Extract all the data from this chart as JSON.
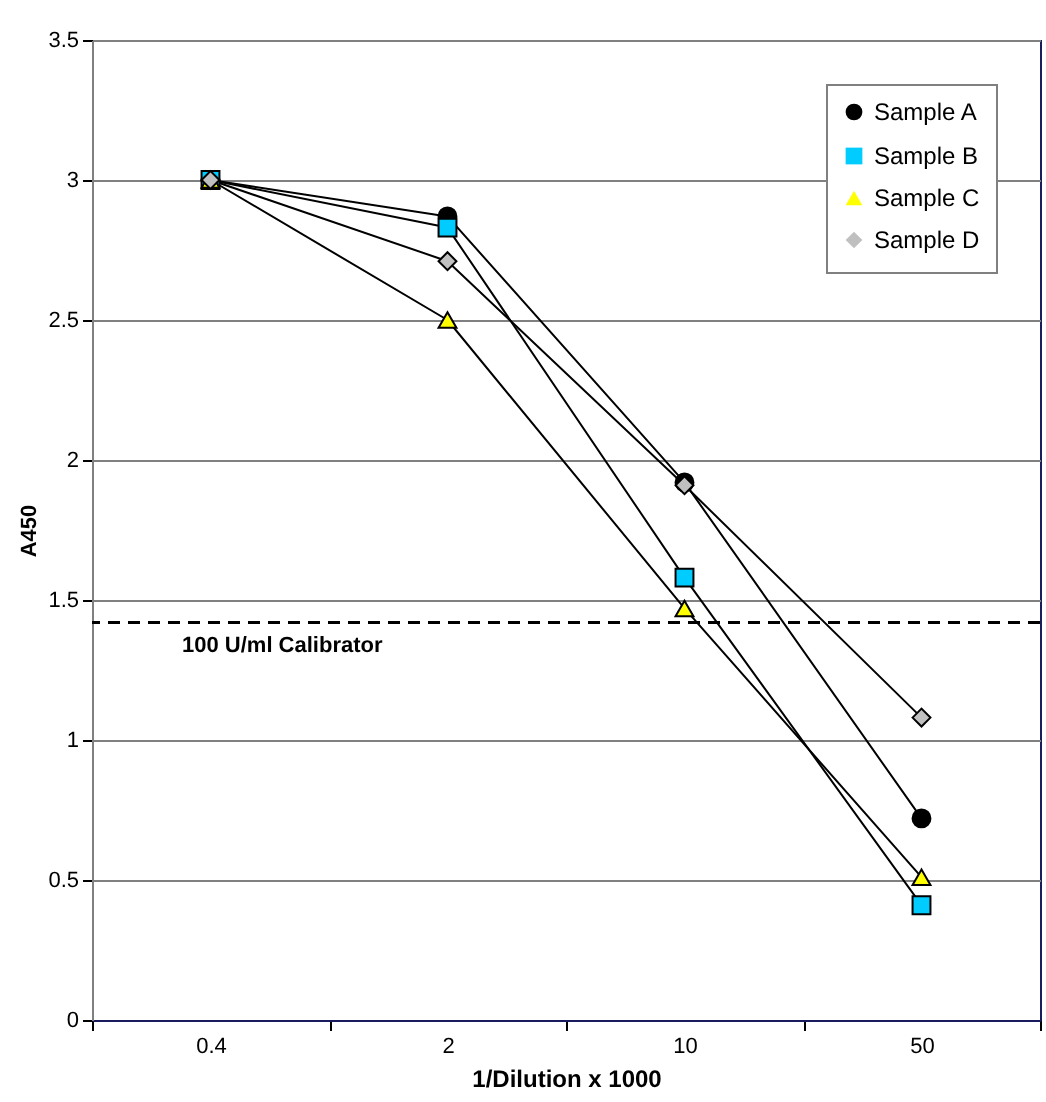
{
  "chart_data": {
    "type": "line",
    "xlabel": "1/Dilution x 1000",
    "ylabel": "A450",
    "categories": [
      "0.4",
      "2",
      "10",
      "50"
    ],
    "series": [
      {
        "name": "Sample A",
        "color": "#000000",
        "marker": "circle",
        "values": [
          3,
          2.87,
          1.92,
          0.72
        ]
      },
      {
        "name": "Sample B",
        "color": "#00ccff",
        "marker": "square",
        "values": [
          3,
          2.83,
          1.58,
          0.41
        ]
      },
      {
        "name": "Sample C",
        "color": "#ffff00",
        "marker": "triangle",
        "values": [
          3,
          2.5,
          1.47,
          0.51
        ]
      },
      {
        "name": "Sample D",
        "color": "#c0c0c0",
        "marker": "diamond",
        "values": [
          3,
          2.71,
          1.91,
          1.08
        ]
      }
    ],
    "ylim": [
      0,
      3.5
    ],
    "yticks": [
      0,
      0.5,
      1,
      1.5,
      2,
      2.5,
      3,
      3.5
    ],
    "grid": "y",
    "legend": "top right",
    "line_style": "solid",
    "ref_lines": [
      {
        "axis": "y",
        "value": 1.42,
        "label": "100 U/ml Calibrator",
        "line_style": "dashed",
        "color": "#000000"
      }
    ]
  }
}
